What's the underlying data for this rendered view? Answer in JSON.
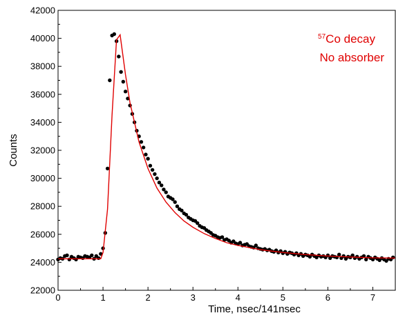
{
  "chart_data": {
    "type": "scatter",
    "xlabel": "Time, nsec/141nsec",
    "ylabel": "Counts",
    "xlim": [
      0,
      7.5
    ],
    "ylim": [
      22000,
      42000
    ],
    "x_ticks": [
      "0",
      "1",
      "2",
      "3",
      "4",
      "5",
      "6",
      "7"
    ],
    "x_tick_values": [
      0,
      1,
      2,
      3,
      4,
      5,
      6,
      7
    ],
    "y_ticks": [
      "22000",
      "24000",
      "26000",
      "28000",
      "30000",
      "32000",
      "34000",
      "36000",
      "38000",
      "40000",
      "42000"
    ],
    "y_tick_values": [
      22000,
      24000,
      26000,
      28000,
      30000,
      32000,
      34000,
      36000,
      38000,
      40000,
      42000
    ],
    "grid": false,
    "annotations": [
      {
        "sup": "57",
        "text": "Co decay"
      },
      {
        "text": "No absorber"
      }
    ],
    "colors": {
      "data_points": "#000000",
      "fit_line": "#e00000",
      "annotation": "#e00000"
    },
    "series": [
      {
        "kind": "points",
        "x": [
          0.0,
          0.05,
          0.1,
          0.15,
          0.2,
          0.25,
          0.3,
          0.35,
          0.4,
          0.45,
          0.5,
          0.55,
          0.6,
          0.65,
          0.7,
          0.75,
          0.8,
          0.85,
          0.9,
          0.95,
          1.0,
          1.05,
          1.1,
          1.15,
          1.2,
          1.25,
          1.3,
          1.35,
          1.4,
          1.45,
          1.5,
          1.55,
          1.6,
          1.65,
          1.7,
          1.75,
          1.8,
          1.85,
          1.9,
          1.95,
          2.0,
          2.05,
          2.1,
          2.15,
          2.2,
          2.25,
          2.3,
          2.35,
          2.4,
          2.45,
          2.5,
          2.55,
          2.6,
          2.65,
          2.7,
          2.75,
          2.8,
          2.85,
          2.9,
          2.95,
          3.0,
          3.05,
          3.1,
          3.15,
          3.2,
          3.25,
          3.3,
          3.35,
          3.4,
          3.45,
          3.5,
          3.55,
          3.6,
          3.65,
          3.7,
          3.75,
          3.8,
          3.85,
          3.9,
          3.95,
          4.0,
          4.05,
          4.1,
          4.15,
          4.2,
          4.25,
          4.3,
          4.35,
          4.4,
          4.45,
          4.5,
          4.55,
          4.6,
          4.65,
          4.7,
          4.75,
          4.8,
          4.85,
          4.9,
          4.95,
          5.0,
          5.05,
          5.1,
          5.15,
          5.2,
          5.25,
          5.3,
          5.35,
          5.4,
          5.45,
          5.5,
          5.55,
          5.6,
          5.65,
          5.7,
          5.75,
          5.8,
          5.85,
          5.9,
          5.95,
          6.0,
          6.05,
          6.1,
          6.15,
          6.2,
          6.25,
          6.3,
          6.35,
          6.4,
          6.45,
          6.5,
          6.55,
          6.6,
          6.65,
          6.7,
          6.75,
          6.8,
          6.85,
          6.9,
          6.95,
          7.0,
          7.05,
          7.1,
          7.15,
          7.2,
          7.25,
          7.3,
          7.35,
          7.4,
          7.45
        ],
        "y": [
          24200,
          24300,
          24250,
          24450,
          24500,
          24200,
          24400,
          24300,
          24200,
          24400,
          24350,
          24300,
          24450,
          24400,
          24350,
          24500,
          24250,
          24450,
          24300,
          24600,
          25000,
          26100,
          30700,
          37000,
          40200,
          40300,
          39800,
          38700,
          37600,
          36900,
          36200,
          35700,
          35200,
          34600,
          34000,
          33400,
          33000,
          32600,
          32200,
          31700,
          31400,
          30900,
          30600,
          30300,
          30000,
          29700,
          29500,
          29200,
          29000,
          28700,
          28600,
          28500,
          28300,
          28000,
          27800,
          27700,
          27500,
          27400,
          27200,
          27100,
          27000,
          26950,
          26800,
          26600,
          26500,
          26450,
          26300,
          26200,
          26100,
          25950,
          25900,
          25800,
          25750,
          25800,
          25600,
          25650,
          25550,
          25400,
          25500,
          25350,
          25300,
          25400,
          25200,
          25250,
          25300,
          25150,
          25100,
          25050,
          25200,
          25000,
          24950,
          24900,
          24950,
          24850,
          24900,
          24800,
          24750,
          24850,
          24700,
          24800,
          24650,
          24750,
          24600,
          24700,
          24650,
          24550,
          24650,
          24500,
          24600,
          24450,
          24550,
          24500,
          24400,
          24550,
          24450,
          24350,
          24500,
          24400,
          24450,
          24350,
          24500,
          24300,
          24450,
          24400,
          24350,
          24550,
          24300,
          24450,
          24250,
          24400,
          24350,
          24500,
          24300,
          24400,
          24250,
          24350,
          24450,
          24200,
          24400,
          24300,
          24200,
          24350,
          24250,
          24150,
          24300,
          24200,
          24100,
          24250,
          24200,
          24350
        ]
      },
      {
        "kind": "fit-line",
        "x": [
          0.0,
          0.95,
          1.0,
          1.1,
          1.2,
          1.3,
          1.38,
          1.5,
          1.6,
          1.8,
          2.0,
          2.2,
          2.4,
          2.6,
          2.8,
          3.0,
          3.25,
          3.5,
          3.75,
          4.0,
          4.5,
          5.0,
          5.5,
          6.0,
          6.5,
          7.0,
          7.5
        ],
        "y": [
          24250,
          24250,
          24700,
          27800,
          34500,
          39900,
          40250,
          37400,
          35400,
          32600,
          30700,
          29300,
          28300,
          27550,
          26950,
          26500,
          26050,
          25700,
          25400,
          25200,
          24900,
          24700,
          24550,
          24450,
          24380,
          24320,
          24300
        ]
      }
    ]
  }
}
